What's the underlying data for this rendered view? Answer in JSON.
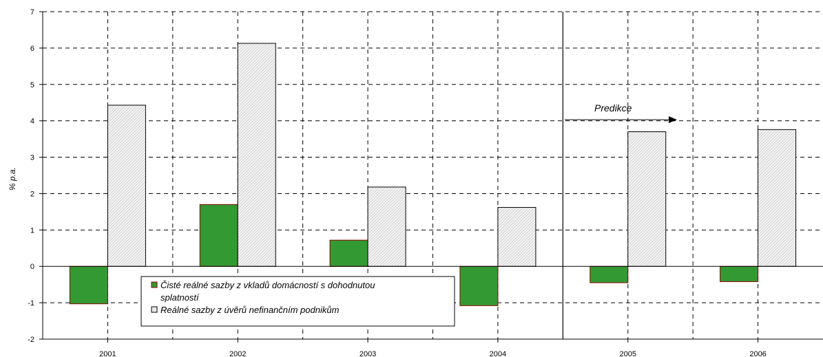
{
  "chart_data": {
    "type": "bar",
    "categories": [
      "2001",
      "2002",
      "2003",
      "2004",
      "2005",
      "2006"
    ],
    "series": [
      {
        "name": "Čisté reálné sazby z vkladů domácností s dohodnutou splatností",
        "name_line1": "Čisté reálné sazby z vkladů domácností s dohodnutou",
        "name_line2": "splatností",
        "values": [
          -1.03,
          1.7,
          0.72,
          -1.08,
          -0.45,
          -0.42
        ],
        "color": "#339933"
      },
      {
        "name": "Reálné sazby z úvěrů nefinančním podnikům",
        "values": [
          4.43,
          6.13,
          2.18,
          1.62,
          3.7,
          3.76
        ],
        "color": "#e4e4e4"
      }
    ],
    "ylabel": "% p.a.",
    "xlabel": "",
    "title": "",
    "ylim": [
      -2,
      7
    ],
    "yticks": [
      "-2",
      "-1",
      "0",
      "1",
      "2",
      "3",
      "4",
      "5",
      "6",
      "7"
    ],
    "grid": true,
    "annotation": "Predikce",
    "prediction_start": "2005"
  }
}
